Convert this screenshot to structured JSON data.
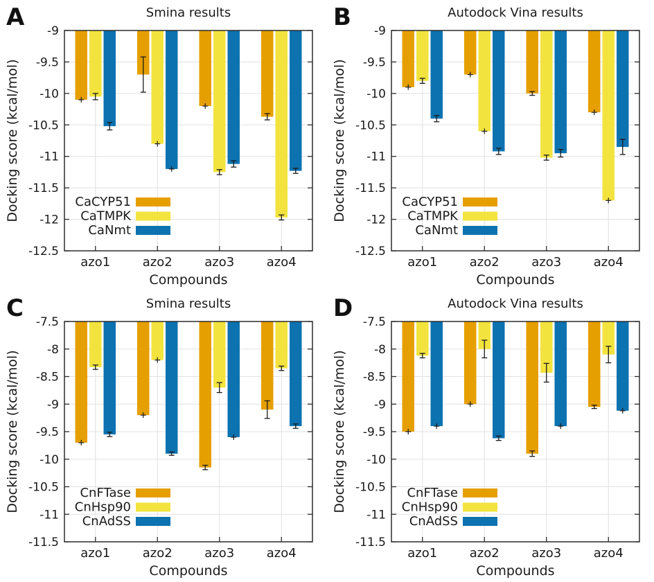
{
  "colors": {
    "orange": "#E69F00",
    "yellow": "#F2E33E",
    "blue": "#0C72B0",
    "grid": "#e0e0e0",
    "frame": "#2b2b2b",
    "errorbar": "#1a1a1a",
    "text": "#1a1a1a",
    "background": "#ffffff"
  },
  "chart_data": [
    {
      "type": "bar",
      "panel_letter": "A",
      "title": "Smina results",
      "xlabel": "Compounds",
      "ylabel": "Docking score (kcal/mol)",
      "ylim": [
        -12.5,
        -9
      ],
      "ytick_step": 0.5,
      "grid": true,
      "legend_position": "lower-left-inside",
      "categories": [
        "azo1",
        "azo2",
        "azo3",
        "azo4"
      ],
      "series": [
        {
          "name": "CaCYP51",
          "color_key": "orange",
          "values": [
            -10.1,
            -9.7,
            -10.2,
            -10.37
          ],
          "errors": [
            0.02,
            0.28,
            0.02,
            0.05
          ]
        },
        {
          "name": "CaTMPK",
          "color_key": "yellow",
          "values": [
            -10.05,
            -10.8,
            -11.25,
            -11.97
          ],
          "errors": [
            0.05,
            0.02,
            0.04,
            0.04
          ]
        },
        {
          "name": "CaNmt",
          "color_key": "blue",
          "values": [
            -10.52,
            -11.2,
            -11.12,
            -11.23
          ],
          "errors": [
            0.06,
            0.02,
            0.05,
            0.04
          ]
        }
      ]
    },
    {
      "type": "bar",
      "panel_letter": "B",
      "title": "Autodock Vina results",
      "xlabel": "Compounds",
      "ylabel": "Docking score (kcal/mol)",
      "ylim": [
        -12.5,
        -9
      ],
      "ytick_step": 0.5,
      "grid": true,
      "legend_position": "lower-left-inside",
      "categories": [
        "azo1",
        "azo2",
        "azo3",
        "azo4"
      ],
      "series": [
        {
          "name": "CaCYP51",
          "color_key": "orange",
          "values": [
            -9.9,
            -9.7,
            -10.0,
            -10.3
          ],
          "errors": [
            0.02,
            0.02,
            0.03,
            0.02
          ]
        },
        {
          "name": "CaTMPK",
          "color_key": "yellow",
          "values": [
            -9.8,
            -10.6,
            -11.02,
            -11.7
          ],
          "errors": [
            0.04,
            0.02,
            0.04,
            0.02
          ]
        },
        {
          "name": "CaNmt",
          "color_key": "blue",
          "values": [
            -10.4,
            -10.92,
            -10.95,
            -10.85
          ],
          "errors": [
            0.05,
            0.05,
            0.06,
            0.12
          ]
        }
      ]
    },
    {
      "type": "bar",
      "panel_letter": "C",
      "title": "Smina results",
      "xlabel": "Compounds",
      "ylabel": "Docking score (kcal/mol)",
      "ylim": [
        -11.5,
        -7.5
      ],
      "ytick_step": 0.5,
      "grid": true,
      "legend_position": "lower-left-inside",
      "categories": [
        "azo1",
        "azo2",
        "azo3",
        "azo4"
      ],
      "series": [
        {
          "name": "CnFTase",
          "color_key": "orange",
          "values": [
            -9.7,
            -9.2,
            -10.15,
            -9.1
          ],
          "errors": [
            0.02,
            0.02,
            0.04,
            0.16
          ]
        },
        {
          "name": "CnHsp90",
          "color_key": "yellow",
          "values": [
            -8.33,
            -8.2,
            -8.7,
            -8.35
          ],
          "errors": [
            0.04,
            0.02,
            0.09,
            0.04
          ]
        },
        {
          "name": "CnAdSS",
          "color_key": "blue",
          "values": [
            -9.55,
            -9.9,
            -9.6,
            -9.4
          ],
          "errors": [
            0.04,
            0.03,
            0.02,
            0.04
          ]
        }
      ]
    },
    {
      "type": "bar",
      "panel_letter": "D",
      "title": "Autodock Vina results",
      "xlabel": "Compounds",
      "ylabel": "Docking score (kcal/mol)",
      "ylim": [
        -11.5,
        -7.5
      ],
      "ytick_step": 0.5,
      "grid": true,
      "legend_position": "lower-left-inside",
      "categories": [
        "azo1",
        "azo2",
        "azo3",
        "azo4"
      ],
      "series": [
        {
          "name": "CnFTase",
          "color_key": "orange",
          "values": [
            -9.5,
            -9.0,
            -9.9,
            -9.05
          ],
          "errors": [
            0.02,
            0.02,
            0.05,
            0.03
          ]
        },
        {
          "name": "CnHsp90",
          "color_key": "yellow",
          "values": [
            -8.12,
            -8.0,
            -8.43,
            -8.1
          ],
          "errors": [
            0.04,
            0.16,
            0.17,
            0.15
          ]
        },
        {
          "name": "CnAdSS",
          "color_key": "blue",
          "values": [
            -9.4,
            -9.62,
            -9.4,
            -9.12
          ],
          "errors": [
            0.02,
            0.04,
            0.02,
            0.02
          ]
        }
      ]
    }
  ]
}
